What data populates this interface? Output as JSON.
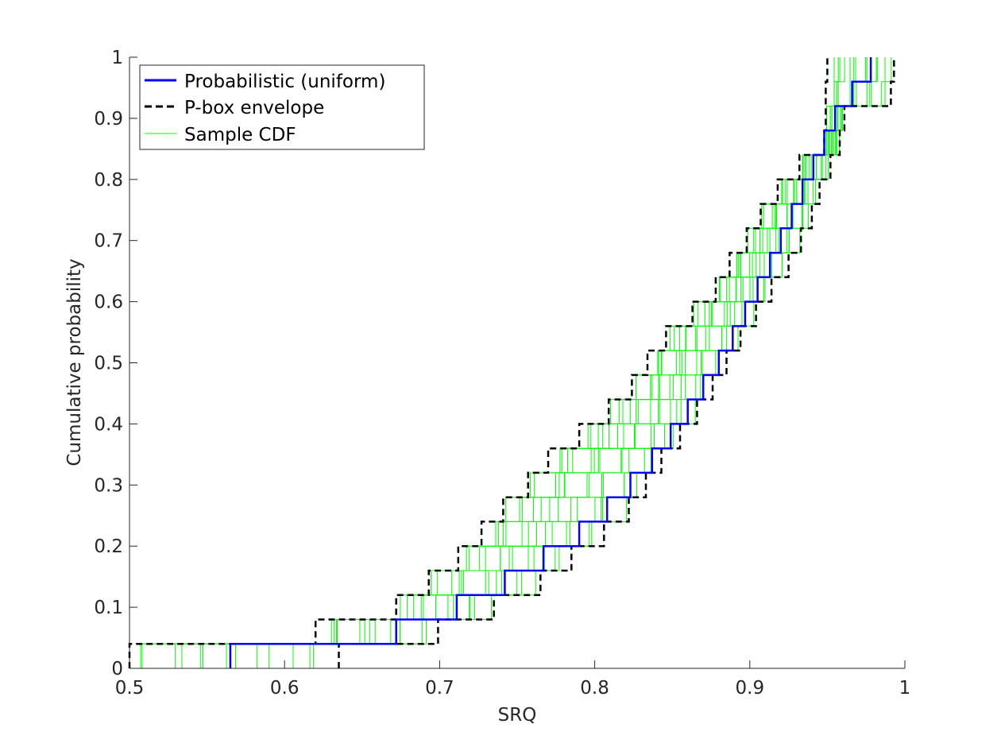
{
  "chart_data": {
    "type": "line",
    "title": "",
    "xlabel": "SRQ",
    "ylabel": "Cumulative probability",
    "xlim": [
      0.5,
      1.0
    ],
    "ylim": [
      0,
      1
    ],
    "xticks": [
      0.5,
      0.6,
      0.7,
      0.8,
      0.9,
      1.0
    ],
    "xtick_labels": [
      "0.5",
      "0.6",
      "0.7",
      "0.8",
      "0.9",
      "1"
    ],
    "yticks": [
      0,
      0.1,
      0.2,
      0.3,
      0.4,
      0.5,
      0.6,
      0.7,
      0.8,
      0.9,
      1.0
    ],
    "ytick_labels": [
      "0",
      "0.1",
      "0.2",
      "0.3",
      "0.4",
      "0.5",
      "0.6",
      "0.7",
      "0.8",
      "0.9",
      "1"
    ],
    "grid": false,
    "legend_position": "top-left",
    "legend": [
      {
        "label": "Probabilistic (uniform)",
        "style": "solid-thick",
        "color": "#0000ff"
      },
      {
        "label": "P-box envelope",
        "style": "dashed",
        "color": "#000000"
      },
      {
        "label": "Sample CDF",
        "style": "solid-thin",
        "color": "#00ff00"
      }
    ],
    "step_probabilities": [
      0.04,
      0.08,
      0.12,
      0.16,
      0.2,
      0.24,
      0.28,
      0.32,
      0.36,
      0.4,
      0.44,
      0.48,
      0.52,
      0.56,
      0.6,
      0.64,
      0.68,
      0.72,
      0.76,
      0.8,
      0.84,
      0.88,
      0.92,
      0.96,
      1.0
    ],
    "series": [
      {
        "name": "Probabilistic (uniform)",
        "color": "#0000ff",
        "steps_x": [
          0.565,
          0.672,
          0.711,
          0.742,
          0.767,
          0.79,
          0.808,
          0.823,
          0.837,
          0.849,
          0.86,
          0.87,
          0.88,
          0.889,
          0.897,
          0.905,
          0.913,
          0.92,
          0.927,
          0.934,
          0.941,
          0.948,
          0.955,
          0.966,
          0.978
        ]
      },
      {
        "name": "P-box envelope",
        "role": "lower",
        "color": "#000000",
        "steps_x": [
          0.5,
          0.62,
          0.672,
          0.693,
          0.712,
          0.727,
          0.741,
          0.757,
          0.77,
          0.79,
          0.809,
          0.824,
          0.834,
          0.846,
          0.863,
          0.878,
          0.887,
          0.898,
          0.907,
          0.918,
          0.932,
          0.948,
          0.949,
          0.949,
          0.95
        ]
      },
      {
        "name": "P-box envelope",
        "role": "upper",
        "color": "#000000",
        "steps_x": [
          0.635,
          0.699,
          0.735,
          0.765,
          0.785,
          0.806,
          0.822,
          0.833,
          0.843,
          0.855,
          0.866,
          0.876,
          0.885,
          0.894,
          0.904,
          0.914,
          0.925,
          0.933,
          0.94,
          0.945,
          0.952,
          0.958,
          0.961,
          0.991,
          0.993
        ]
      }
    ]
  }
}
